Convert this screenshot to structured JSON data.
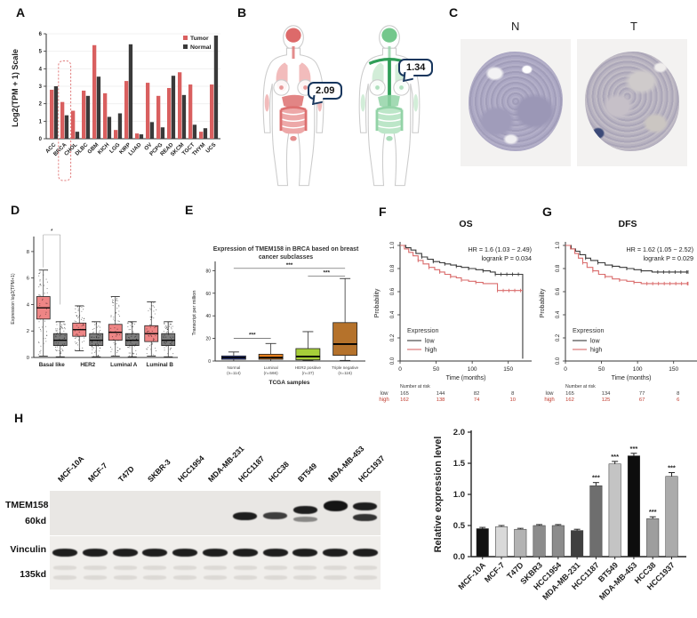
{
  "figure_panels": {
    "a": "A",
    "b": "B",
    "c": "C",
    "d": "D",
    "e": "E",
    "f": "F",
    "g": "G",
    "h": "H"
  },
  "panel_b": {
    "tumor_value": "2.09",
    "normal_value": "1.34",
    "tumor_palette": {
      "brain": "#dd6a6a",
      "lungs": "#f2bcbc",
      "organ": "#dd7070",
      "gut": "#eda8a8",
      "outline": "#cccccc",
      "vessel": ""
    },
    "normal_palette": {
      "brain": "#74c78c",
      "lungs": "#d2edd8",
      "organ": "#93d3a7",
      "gut": "#bce6c8",
      "outline": "#cccccc",
      "vessel": "#2f9e57"
    }
  },
  "panel_c": {
    "left_label": "N",
    "right_label": "T"
  },
  "panel_h_blot": {
    "row1_label": "TMEM158",
    "row1_kd": "60kd",
    "row2_label": "Vinculin",
    "row2_kd": "135kd",
    "lanes": [
      {
        "label": "MCF-10A",
        "bands": []
      },
      {
        "label": "MCF-7",
        "bands": []
      },
      {
        "label": "T47D",
        "bands": []
      },
      {
        "label": "SKBR-3",
        "bands": []
      },
      {
        "label": "HCC1954",
        "bands": []
      },
      {
        "label": "MDA-MB-231",
        "bands": []
      },
      {
        "label": "HCC1187",
        "bands": [
          [
            6,
            0.95,
            9
          ]
        ]
      },
      {
        "label": "HCC38",
        "bands": [
          [
            6,
            0.8,
            8
          ]
        ]
      },
      {
        "label": "BT549",
        "bands": [
          [
            -1,
            0.95,
            9
          ],
          [
            11,
            0.45,
            6
          ]
        ]
      },
      {
        "label": "MDA-MB-453",
        "bands": [
          [
            -7,
            1,
            12
          ]
        ]
      },
      {
        "label": "HCC1937",
        "bands": [
          [
            -5,
            0.95,
            9
          ],
          [
            8,
            0.85,
            8
          ]
        ]
      }
    ]
  },
  "chart_data": [
    {
      "id": "panelA",
      "type": "bar",
      "ylabel": "Log2(TPM + 1) Scale",
      "ylim": [
        0,
        6
      ],
      "yticks": [
        0,
        1,
        2,
        3,
        4,
        5,
        6
      ],
      "categories": [
        "ACC",
        "BRCA",
        "CHOL",
        "DLBC",
        "GBM",
        "KICH",
        "LGG",
        "KIRP",
        "LUAD",
        "OV",
        "PCPG",
        "READ",
        "SKCM",
        "TGCT",
        "THYM",
        "UCS"
      ],
      "series": [
        {
          "name": "Tumor",
          "color": "#d95f5f",
          "values": [
            2.8,
            2.1,
            1.6,
            2.75,
            5.35,
            2.6,
            0.5,
            3.3,
            0.3,
            3.2,
            2.45,
            2.9,
            3.8,
            3.1,
            0.4,
            3.1
          ]
        },
        {
          "name": "Normal",
          "color": "#3a3a3a",
          "values": [
            3.0,
            1.34,
            0.4,
            2.45,
            3.55,
            1.25,
            1.45,
            5.4,
            0.25,
            0.95,
            0.65,
            3.6,
            2.5,
            0.8,
            0.6,
            5.9
          ]
        }
      ],
      "highlight_category": "BRCA",
      "legend_position": "top-right"
    },
    {
      "id": "panelD",
      "type": "boxplot",
      "ylabel": "Expression log2(TPM+1)",
      "ylim": [
        0,
        9
      ],
      "yticks": [
        0,
        2,
        4,
        6,
        8
      ],
      "categories": [
        "Basal like",
        "HER2",
        "Luminal A",
        "Luminal B"
      ],
      "series": [
        {
          "name": "Tumor",
          "color": "#ee8585",
          "boxes": [
            {
              "lo": 0.1,
              "q1": 2.9,
              "med": 3.75,
              "q3": 4.6,
              "hi": 6.6
            },
            {
              "lo": 0.5,
              "q1": 1.6,
              "med": 2.1,
              "q3": 2.6,
              "hi": 3.9
            },
            {
              "lo": 0.1,
              "q1": 1.3,
              "med": 1.9,
              "q3": 2.5,
              "hi": 4.6
            },
            {
              "lo": 0.1,
              "q1": 1.2,
              "med": 1.8,
              "q3": 2.4,
              "hi": 4.2
            }
          ]
        },
        {
          "name": "Normal",
          "color": "#7d7d7d",
          "boxes": [
            {
              "lo": 0.05,
              "q1": 0.9,
              "med": 1.3,
              "q3": 1.8,
              "hi": 2.7
            },
            {
              "lo": 0.05,
              "q1": 0.9,
              "med": 1.3,
              "q3": 1.8,
              "hi": 2.7
            },
            {
              "lo": 0.05,
              "q1": 0.9,
              "med": 1.3,
              "q3": 1.8,
              "hi": 2.7
            },
            {
              "lo": 0.05,
              "q1": 0.9,
              "med": 1.3,
              "q3": 1.8,
              "hi": 2.7
            }
          ]
        }
      ],
      "significance": [
        {
          "category_index": 0,
          "label": "*"
        }
      ]
    },
    {
      "id": "panelE",
      "type": "boxplot",
      "title": "Expression of TMEM158 in BRCA based on breast cancer subclasses",
      "xlabel": "TCGA samples",
      "ylabel": "Transcript per million",
      "ylim": [
        0,
        85
      ],
      "yticks": [
        0,
        20,
        40,
        60,
        80
      ],
      "groups": [
        {
          "label": "Normal",
          "n": "(n=114)",
          "color": "#3d4fc4",
          "lo": 0,
          "q1": 1.5,
          "med": 3,
          "q3": 4.5,
          "hi": 8
        },
        {
          "label": "Luminal",
          "n": "(n=566)",
          "color": "#e6801e",
          "lo": 0,
          "q1": 1.5,
          "med": 3,
          "q3": 6,
          "hi": 15.5
        },
        {
          "label": "HER2 positive",
          "n": "(n=37)",
          "color": "#a6ce39",
          "lo": 0.5,
          "q1": 1,
          "med": 4,
          "q3": 11,
          "hi": 26
        },
        {
          "label": "Triple negative",
          "n": "(n=116)",
          "color": "#b5722b",
          "lo": 0.5,
          "q1": 5,
          "med": 15,
          "q3": 34,
          "hi": 73
        }
      ],
      "significance": [
        {
          "from": 0,
          "to": 3,
          "y": 82,
          "label": "***"
        },
        {
          "from": 2,
          "to": 3,
          "y": 75,
          "label": "***"
        },
        {
          "from": 0,
          "to": 1,
          "y": 20,
          "label": "***"
        }
      ]
    },
    {
      "id": "panelF",
      "type": "line",
      "title": "OS",
      "xlabel": "Time (months)",
      "ylabel": "Probability",
      "xlim": [
        0,
        175
      ],
      "xticks": [
        0,
        50,
        100,
        150
      ],
      "yticks": [
        "0.0",
        "0.2",
        "0.4",
        "0.6",
        "0.8",
        "1.0"
      ],
      "annotation": [
        "HR = 1.6 (1.03 − 2.49)",
        "logrank P = 0.034"
      ],
      "legend_title": "Expression",
      "series": [
        {
          "name": "low",
          "color": "#3a3a3a",
          "end_drop": true,
          "points": [
            [
              0,
              1.0
            ],
            [
              8,
              0.98
            ],
            [
              15,
              0.96
            ],
            [
              22,
              0.93
            ],
            [
              30,
              0.9
            ],
            [
              38,
              0.88
            ],
            [
              46,
              0.86
            ],
            [
              55,
              0.85
            ],
            [
              62,
              0.84
            ],
            [
              70,
              0.83
            ],
            [
              78,
              0.82
            ],
            [
              85,
              0.81
            ],
            [
              95,
              0.8
            ],
            [
              105,
              0.79
            ],
            [
              115,
              0.78
            ],
            [
              125,
              0.77
            ],
            [
              132,
              0.75
            ],
            [
              170,
              0.75
            ]
          ]
        },
        {
          "name": "high",
          "color": "#d96b6b",
          "end_drop": false,
          "points": [
            [
              0,
              1.0
            ],
            [
              6,
              0.97
            ],
            [
              12,
              0.94
            ],
            [
              18,
              0.91
            ],
            [
              25,
              0.87
            ],
            [
              32,
              0.84
            ],
            [
              40,
              0.81
            ],
            [
              48,
              0.79
            ],
            [
              55,
              0.77
            ],
            [
              62,
              0.75
            ],
            [
              70,
              0.73
            ],
            [
              78,
              0.72
            ],
            [
              85,
              0.7
            ],
            [
              95,
              0.69
            ],
            [
              105,
              0.68
            ],
            [
              115,
              0.67
            ],
            [
              135,
              0.61
            ],
            [
              170,
              0.61
            ]
          ]
        }
      ],
      "risk_table": {
        "title": "Number at risk",
        "rows": [
          {
            "name": "low",
            "color": "#3a3a3a",
            "values": [
              "165",
              "144",
              "82",
              "8"
            ]
          },
          {
            "name": "high",
            "color": "#c0392b",
            "values": [
              "162",
              "138",
              "74",
              "10"
            ]
          }
        ]
      }
    },
    {
      "id": "panelG",
      "type": "line",
      "title": "DFS",
      "xlabel": "Time (months)",
      "ylabel": "Probability",
      "xlim": [
        0,
        175
      ],
      "xticks": [
        0,
        50,
        100,
        150
      ],
      "yticks": [
        "0.0",
        "0.2",
        "0.4",
        "0.6",
        "0.8",
        "1.0"
      ],
      "annotation": [
        "HR = 1.62 (1.05 − 2.52)",
        "logrank P = 0.029"
      ],
      "legend_title": "Expression",
      "series": [
        {
          "name": "low",
          "color": "#3a3a3a",
          "end_drop": false,
          "points": [
            [
              0,
              1.0
            ],
            [
              8,
              0.97
            ],
            [
              14,
              0.95
            ],
            [
              20,
              0.92
            ],
            [
              28,
              0.89
            ],
            [
              35,
              0.87
            ],
            [
              45,
              0.85
            ],
            [
              55,
              0.83
            ],
            [
              65,
              0.82
            ],
            [
              75,
              0.81
            ],
            [
              85,
              0.8
            ],
            [
              95,
              0.79
            ],
            [
              105,
              0.78
            ],
            [
              120,
              0.77
            ],
            [
              170,
              0.77
            ]
          ]
        },
        {
          "name": "high",
          "color": "#d96b6b",
          "end_drop": false,
          "points": [
            [
              0,
              1.0
            ],
            [
              7,
              0.97
            ],
            [
              13,
              0.93
            ],
            [
              18,
              0.89
            ],
            [
              24,
              0.85
            ],
            [
              30,
              0.81
            ],
            [
              38,
              0.78
            ],
            [
              46,
              0.75
            ],
            [
              55,
              0.73
            ],
            [
              65,
              0.71
            ],
            [
              75,
              0.7
            ],
            [
              85,
              0.69
            ],
            [
              95,
              0.68
            ],
            [
              105,
              0.67
            ],
            [
              170,
              0.67
            ]
          ]
        }
      ],
      "risk_table": {
        "title": "Number at risk",
        "rows": [
          {
            "name": "low",
            "color": "#3a3a3a",
            "values": [
              "165",
              "134",
              "77",
              "8"
            ]
          },
          {
            "name": "high",
            "color": "#c0392b",
            "values": [
              "162",
              "125",
              "67",
              "6"
            ]
          }
        ]
      }
    },
    {
      "id": "panelHbar",
      "type": "bar",
      "ylabel": "Relative expression level",
      "ylim": [
        0,
        2
      ],
      "yticks": [
        "0.0",
        "0.5",
        "1.0",
        "1.5",
        "2.0"
      ],
      "categories": [
        "MCF-10A",
        "MCF-7",
        "T47D",
        "SKBR3",
        "HCC1954",
        "MDA-MB-231",
        "HCC1187",
        "BT549",
        "MDA-MB-453",
        "HCC38",
        "HCC1937"
      ],
      "values": [
        0.45,
        0.48,
        0.44,
        0.5,
        0.5,
        0.42,
        1.14,
        1.49,
        1.62,
        0.61,
        1.29
      ],
      "errors": [
        0.02,
        0.02,
        0.015,
        0.015,
        0.015,
        0.02,
        0.05,
        0.04,
        0.04,
        0.03,
        0.06
      ],
      "sig": [
        "",
        "",
        "",
        "",
        "",
        "",
        "***",
        "***",
        "***",
        "***",
        "***"
      ],
      "colors": [
        "#111111",
        "#d9d9d9",
        "#b3b3b3",
        "#8c8c8c",
        "#8c8c8c",
        "#404040",
        "#6e6e6e",
        "#c4c4c4",
        "#0d0d0d",
        "#9e9e9e",
        "#ababab"
      ]
    }
  ]
}
